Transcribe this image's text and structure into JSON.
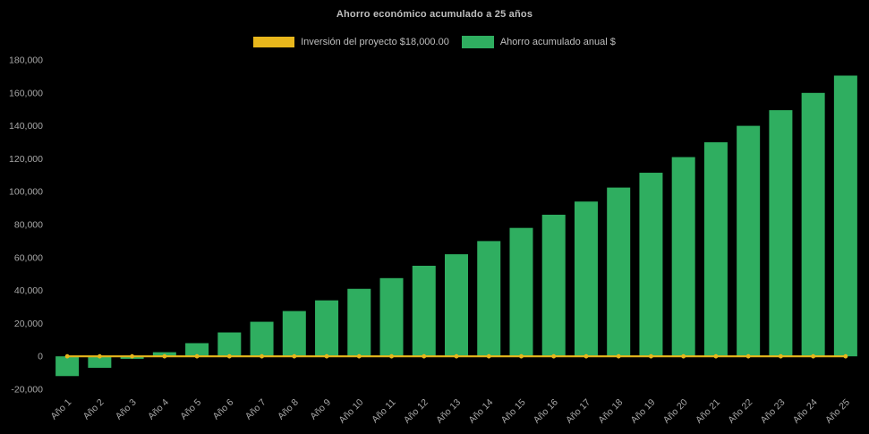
{
  "colors": {
    "background": "#000000",
    "bar": "#2fae60",
    "line": "#e8b71c",
    "title_text": "#bfbfbf",
    "axis_text": "#a8a8a8"
  },
  "legend": {
    "investment_label": "Inversión del proyecto $18,000.00",
    "savings_label": "Ahorro acumulado anual $"
  },
  "chart_data": {
    "type": "bar",
    "title": "Ahorro económico acumulado a 25 años",
    "categories": [
      "Año 1",
      "Año 2",
      "Año 3",
      "Año 4",
      "Año 5",
      "Año 6",
      "Año 7",
      "Año 8",
      "Año 9",
      "Año 10",
      "Año 11",
      "Año 12",
      "Año 13",
      "Año 14",
      "Año 15",
      "Año 16",
      "Año 17",
      "Año 18",
      "Año 19",
      "Año 20",
      "Año 21",
      "Año 22",
      "Año 23",
      "Año 24",
      "Año 25"
    ],
    "series": [
      {
        "name": "Ahorro acumulado anual $",
        "render": "bar",
        "color": "#2fae60",
        "values": [
          -12000,
          -7000,
          -1500,
          2500,
          8000,
          14500,
          21000,
          27500,
          34000,
          41000,
          47500,
          55000,
          62000,
          70000,
          78000,
          86000,
          94000,
          102500,
          111500,
          121000,
          130000,
          140000,
          149500,
          160000,
          170500
        ]
      },
      {
        "name": "Inversión del proyecto $18,000.00",
        "render": "line",
        "color": "#e8b71c",
        "constant_value": 0
      }
    ],
    "xlabel": "",
    "ylabel": "",
    "ylim": [
      -20000,
      180000
    ],
    "ytick_step": 20000,
    "grid": false,
    "legend_position": "top"
  }
}
